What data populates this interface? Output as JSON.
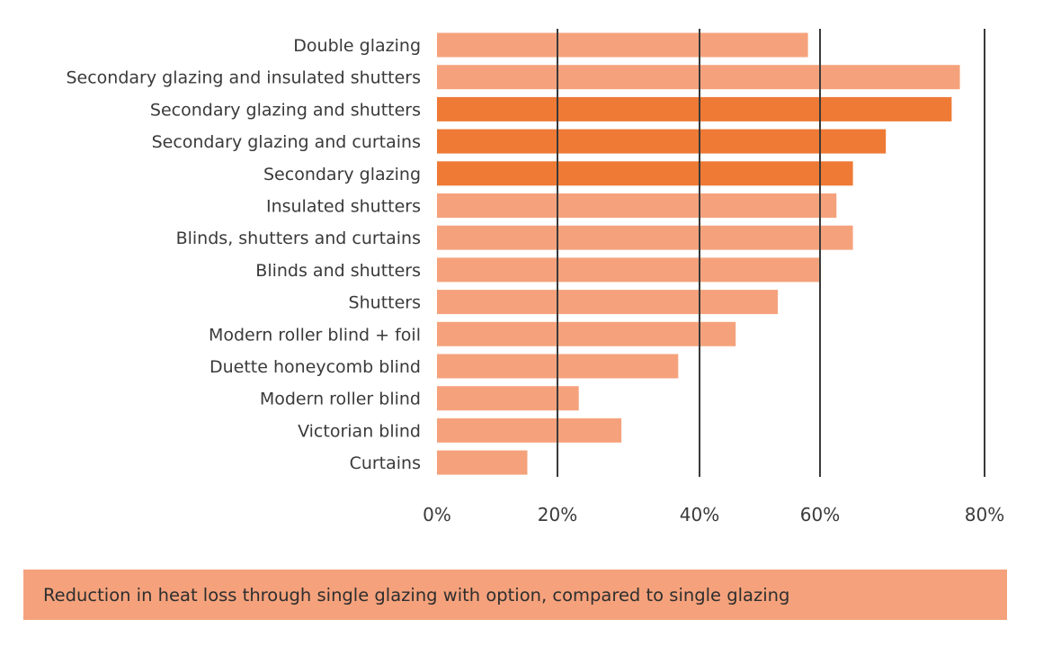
{
  "chart_data": {
    "type": "bar",
    "orientation": "horizontal",
    "categories": [
      "Double glazing",
      "Secondary glazing and insulated shutters",
      "Secondary glazing and shutters",
      "Secondary glazing and curtains",
      "Secondary glazing",
      "Insulated shutters",
      "Blinds, shutters and curtains",
      "Blinds and shutters",
      "Shutters",
      "Modern roller blind + foil",
      "Duette honeycomb blind",
      "Modern roller blind",
      "Victorian blind",
      "Curtains"
    ],
    "values": [
      58,
      77,
      76,
      68,
      64,
      62,
      64,
      60,
      53,
      46,
      37,
      23,
      29,
      15
    ],
    "highlighted": [
      false,
      false,
      true,
      true,
      true,
      false,
      false,
      false,
      false,
      false,
      false,
      false,
      false,
      false
    ],
    "xlim": [
      0,
      80
    ],
    "xticks": [
      0,
      20,
      40,
      60,
      80
    ],
    "xtick_labels": [
      "0%",
      "20%",
      "40%",
      "60%",
      "80%"
    ],
    "grid": true,
    "title": "",
    "xlabel": "Reduction in heat loss through single glazing with option, compared to single glazing",
    "ylabel": ""
  },
  "colors": {
    "bar": "#f5a27c",
    "bar_highlight": "#ee7a35",
    "caption_background": "#f5a27c",
    "gridline": "#3a3a3a",
    "text": "#3a3a3a"
  }
}
